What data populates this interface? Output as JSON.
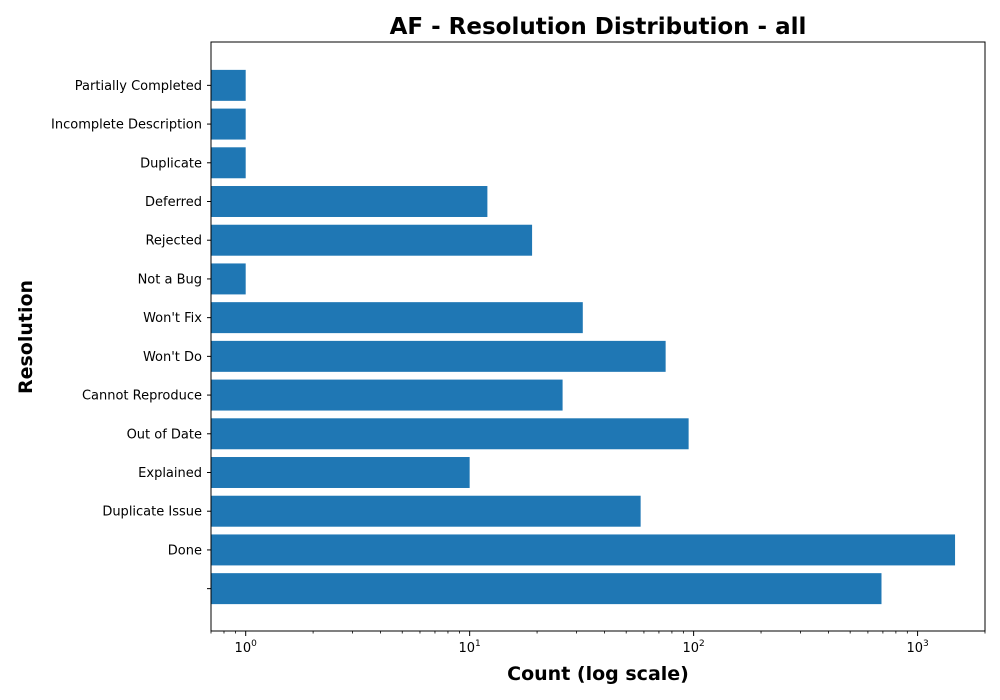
{
  "chart_data": {
    "type": "bar",
    "orientation": "horizontal",
    "title": "AF - Resolution Distribution - all",
    "xlabel": "Count (log scale)",
    "ylabel": "Resolution",
    "x_scale": "log",
    "xlim": [
      0.7,
      2000
    ],
    "x_ticks": [
      {
        "value": 1,
        "base": "10",
        "exp": "0"
      },
      {
        "value": 10,
        "base": "10",
        "exp": "1"
      },
      {
        "value": 100,
        "base": "10",
        "exp": "2"
      },
      {
        "value": 1000,
        "base": "10",
        "exp": "3"
      }
    ],
    "categories": [
      "",
      "Done",
      "Duplicate Issue",
      "Explained",
      "Out of Date",
      "Cannot Reproduce",
      "Won't Do",
      "Won't Fix",
      "Not a Bug",
      "Rejected",
      "Deferred",
      "Duplicate",
      "Incomplete Description",
      "Partially Completed"
    ],
    "values": [
      690,
      1470,
      58,
      10,
      95,
      26,
      75,
      32,
      1,
      19,
      12,
      1,
      1,
      1
    ],
    "bar_color": "#1f77b4",
    "grid": false,
    "legend": "none"
  }
}
